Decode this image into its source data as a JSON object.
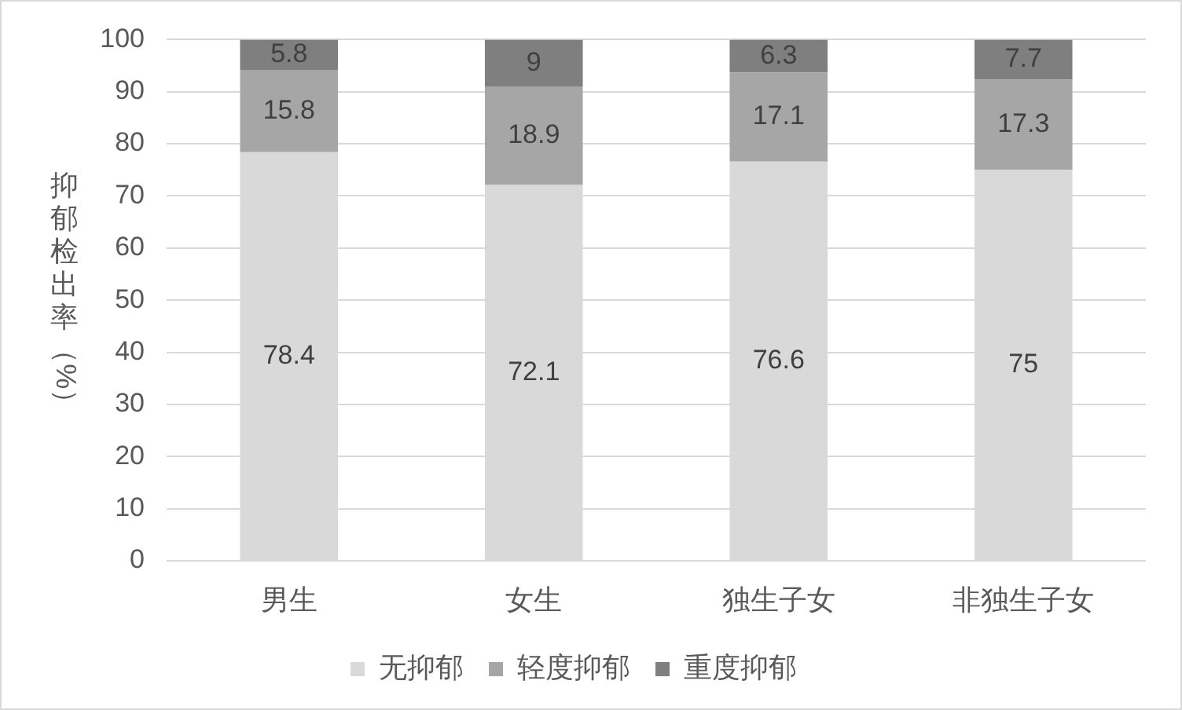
{
  "chart_data": {
    "type": "bar",
    "stacked": true,
    "ylabel": "抑郁检出率（%）",
    "categories": [
      "男生",
      "女生",
      "独生子女",
      "非独生子女"
    ],
    "series": [
      {
        "name": "无抑郁",
        "color": "#d9d9d9",
        "values": [
          78.4,
          72.1,
          76.6,
          75
        ]
      },
      {
        "name": "轻度抑郁",
        "color": "#a6a6a6",
        "values": [
          15.8,
          18.9,
          17.1,
          17.3
        ]
      },
      {
        "name": "重度抑郁",
        "color": "#7f7f7f",
        "values": [
          5.8,
          9,
          6.3,
          7.7
        ]
      }
    ],
    "ylim": [
      0,
      100
    ],
    "yticks": [
      0,
      10,
      20,
      30,
      40,
      50,
      60,
      70,
      80,
      90,
      100
    ],
    "grid": "y",
    "legend": "bottom",
    "data_labels": true
  }
}
